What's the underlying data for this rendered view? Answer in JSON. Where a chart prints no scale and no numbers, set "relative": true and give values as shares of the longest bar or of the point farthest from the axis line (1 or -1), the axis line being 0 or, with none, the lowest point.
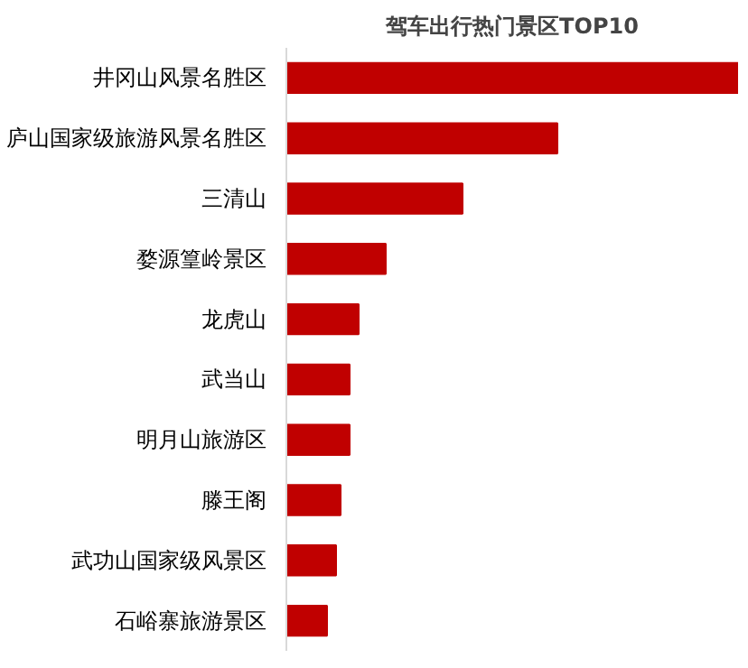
{
  "chart_data": {
    "type": "bar",
    "orientation": "horizontal",
    "relative": true,
    "title": "驾车出行热门景区TOP10",
    "categories": [
      "井冈山风景名胜区",
      "庐山国家级旅游风景名胜区",
      "三清山",
      "婺源篁岭景区",
      "龙虎山",
      "武当山",
      "明月山旅游区",
      "滕王阁",
      "武功山国家级风景区",
      "石峪寨旅游景区"
    ],
    "values": [
      1,
      0.6,
      0.39,
      0.22,
      0.16,
      0.14,
      0.14,
      0.12,
      0.11,
      0.09
    ],
    "color": "#c00000"
  }
}
